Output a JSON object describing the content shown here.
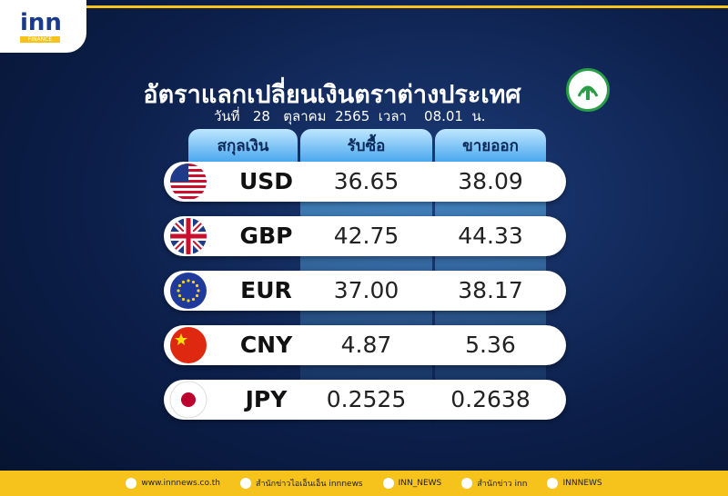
{
  "logo": {
    "brand": "inn",
    "sub": "FINANCE"
  },
  "header": {
    "title": "อัตราแลกเปลี่ยนเงินตราต่างประเทศ",
    "date": "วันที่   28   ตุลาคม  2565  เวลา    08.01  น."
  },
  "table": {
    "columns": [
      "สกุลเงิน",
      "รับซื้อ",
      "ขายออก"
    ],
    "rows": [
      [
        "USD",
        "36.65",
        "38.09"
      ],
      [
        "GBP",
        "42.75",
        "44.33"
      ],
      [
        "EUR",
        "37.00",
        "38.17"
      ],
      [
        "CNY",
        "4.87",
        "5.36"
      ],
      [
        "JPY",
        "0.2525",
        "0.2638"
      ]
    ]
  },
  "footer": [
    "www.innnews.co.th",
    "สำนักข่าวไอเอ็นเอ็น innnews",
    "INN_NEWS",
    "สำนักข่าว inn",
    "INNNEWS"
  ]
}
